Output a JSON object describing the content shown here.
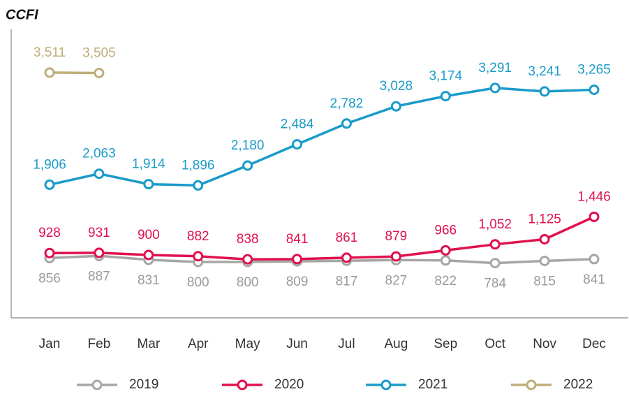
{
  "chart_data": {
    "type": "line",
    "title": "CCFI",
    "categories": [
      "Jan",
      "Feb",
      "Mar",
      "Apr",
      "May",
      "Jun",
      "Jul",
      "Aug",
      "Sep",
      "Oct",
      "Nov",
      "Dec"
    ],
    "ylim": [
      0,
      4100
    ],
    "legend": "bottom",
    "series": [
      {
        "name": "2019",
        "color": "#a6a6a6",
        "label_color": "#9a9a9a",
        "label_position": "below",
        "values": [
          856,
          887,
          831,
          800,
          800,
          809,
          817,
          827,
          822,
          784,
          815,
          841
        ],
        "value_labels": [
          "856",
          "887",
          "831",
          "800",
          "800",
          "809",
          "817",
          "827",
          "822",
          "784",
          "815",
          "841"
        ]
      },
      {
        "name": "2020",
        "color": "#e0114f",
        "label_color": "#e0114f",
        "label_position": "above",
        "values": [
          928,
          931,
          900,
          882,
          838,
          841,
          861,
          879,
          966,
          1052,
          1125,
          1446
        ],
        "value_labels": [
          "928",
          "931",
          "900",
          "882",
          "838",
          "841",
          "861",
          "879",
          "966",
          "1,052",
          "1,125",
          "1,446"
        ]
      },
      {
        "name": "2021",
        "color": "#1a9bc9",
        "label_color": "#1a9bc9",
        "label_position": "above",
        "values": [
          1906,
          2063,
          1914,
          1896,
          2180,
          2484,
          2782,
          3028,
          3174,
          3291,
          3241,
          3265
        ],
        "value_labels": [
          "1,906",
          "2,063",
          "1,914",
          "1,896",
          "2,180",
          "2,484",
          "2,782",
          "3,028",
          "3,174",
          "3,291",
          "3,241",
          "3,265"
        ]
      },
      {
        "name": "2022",
        "color": "#bfae7a",
        "label_color": "#bfae7a",
        "label_position": "above",
        "values": [
          3511,
          3505,
          null,
          null,
          null,
          null,
          null,
          null,
          null,
          null,
          null,
          null
        ],
        "value_labels": [
          "3,511",
          "3,505",
          null,
          null,
          null,
          null,
          null,
          null,
          null,
          null,
          null,
          null
        ]
      }
    ]
  }
}
